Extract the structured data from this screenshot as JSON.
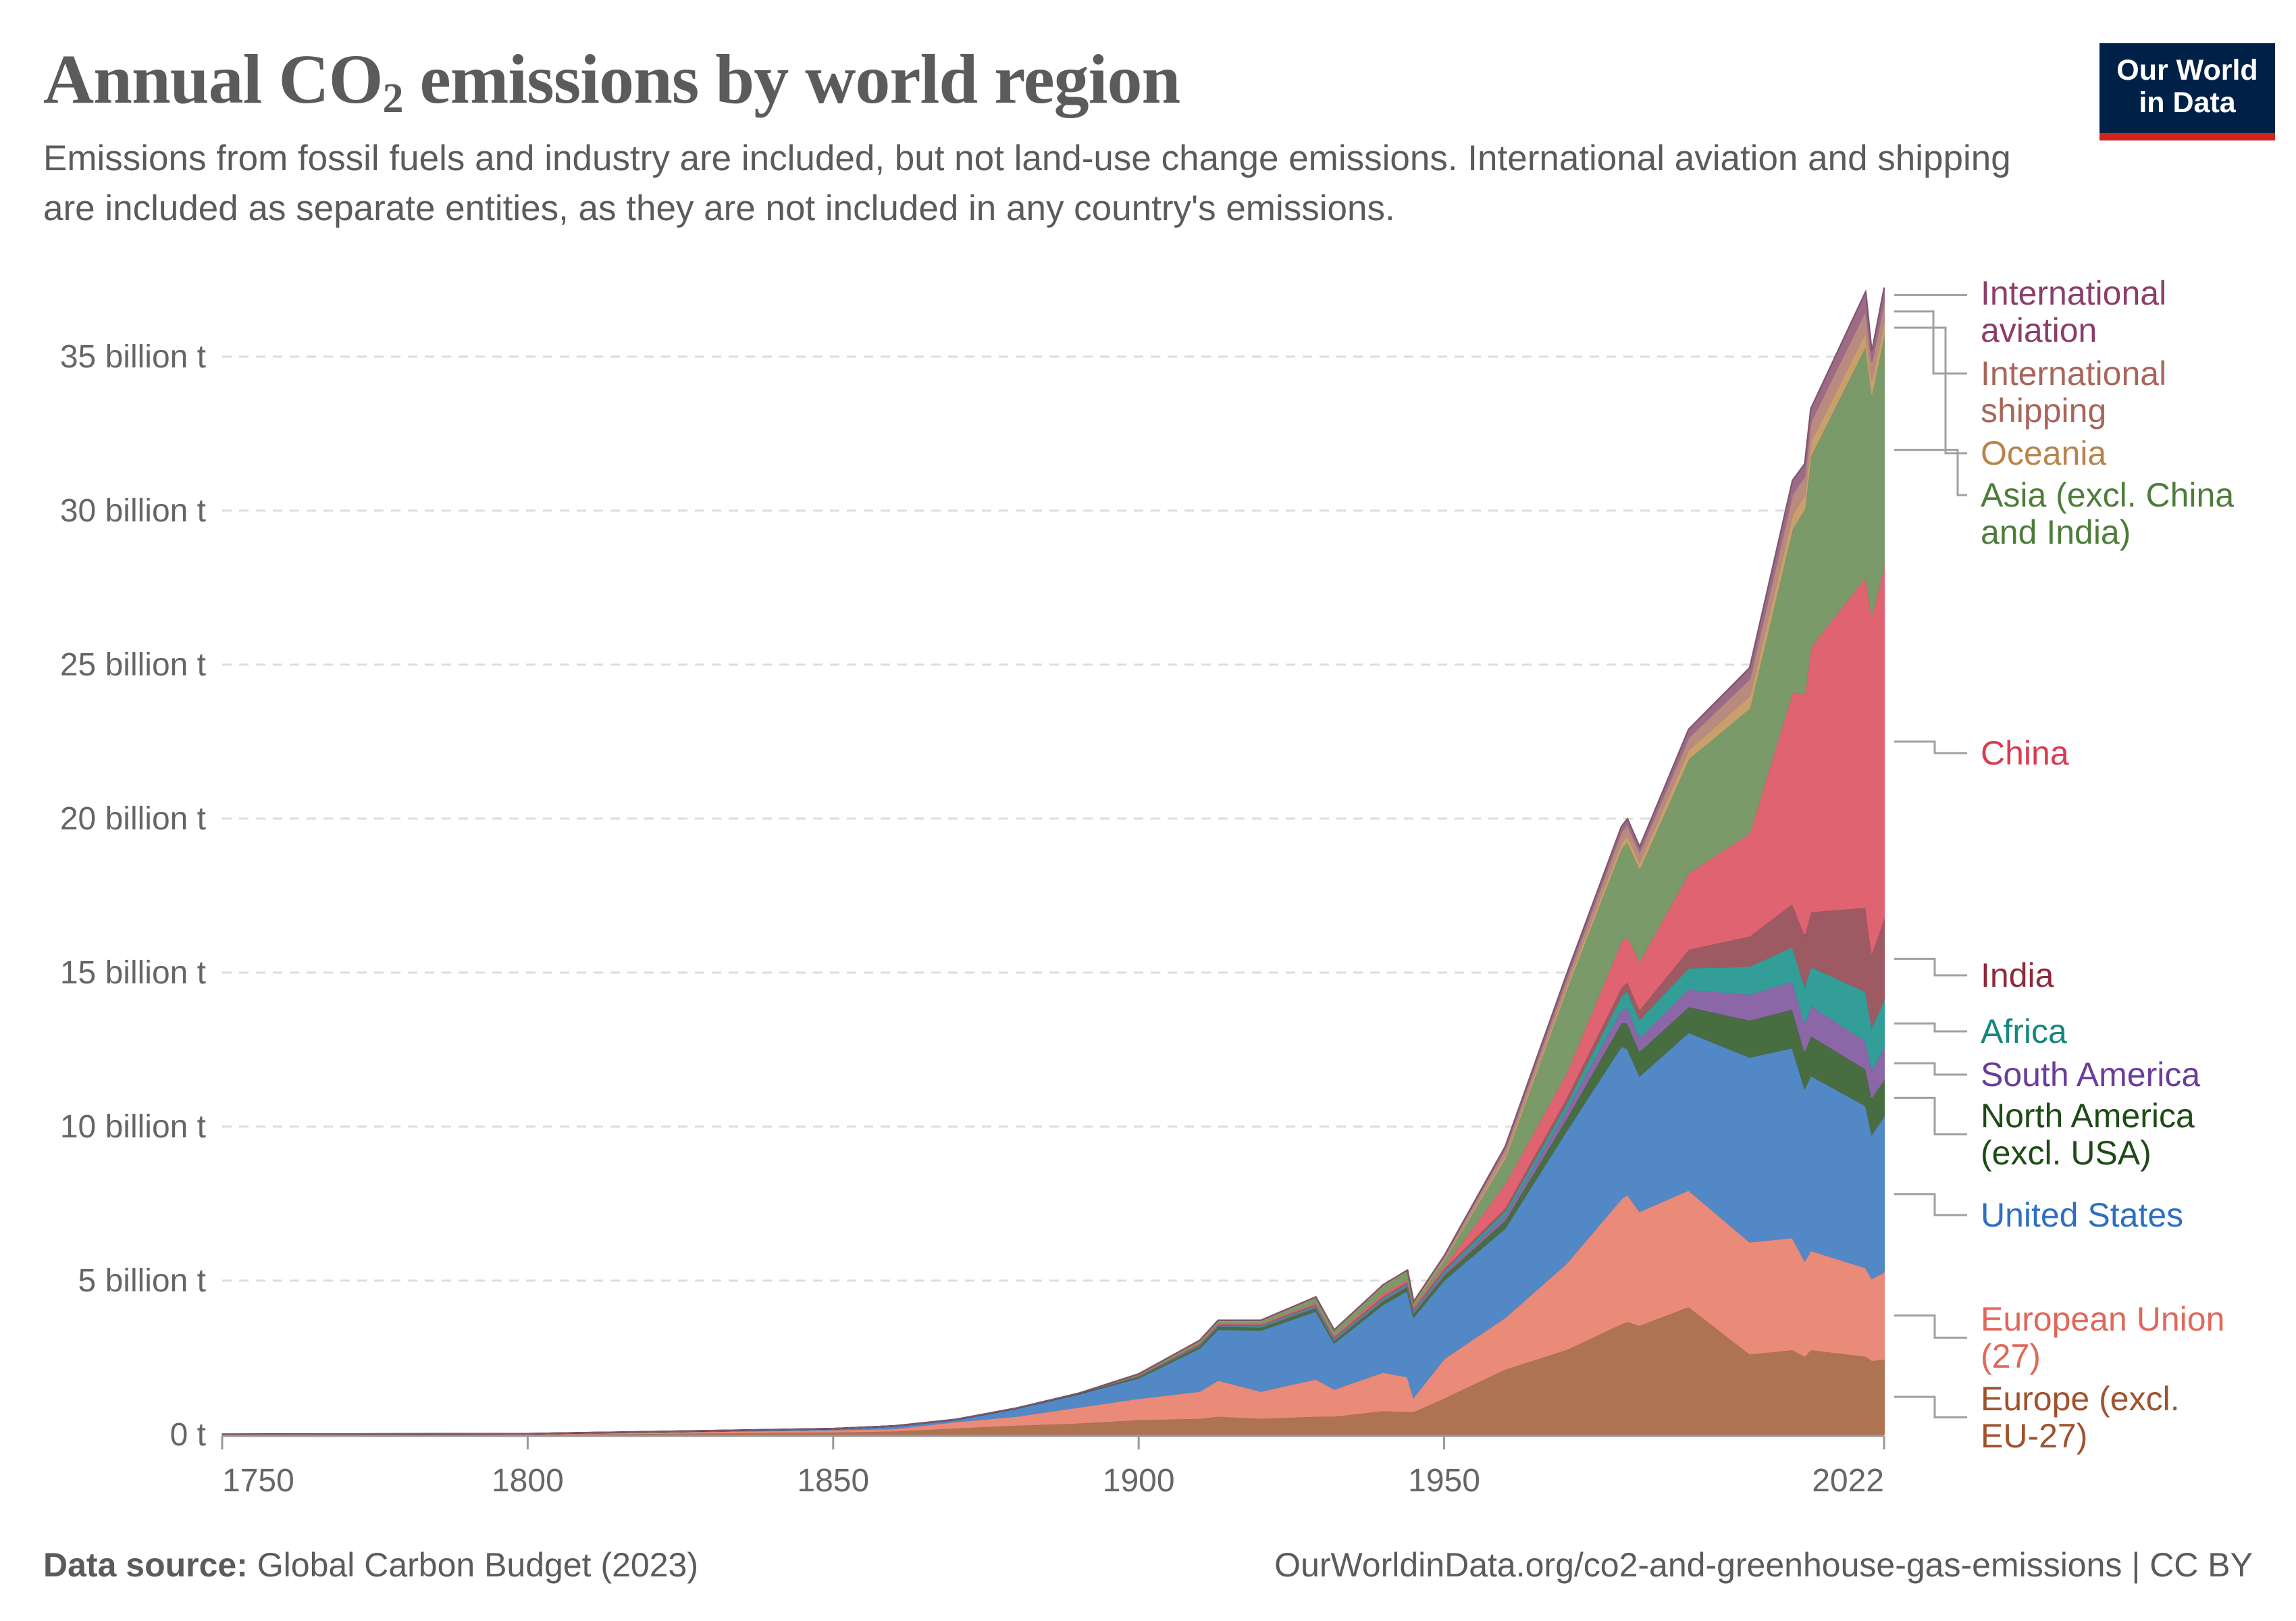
{
  "header": {
    "title_prefix": "Annual CO",
    "title_subscript": "2",
    "title_suffix": " emissions by world region",
    "subtitle": "Emissions from fossil fuels and industry are included, but not land-use change emissions. International aviation and shipping are included as separate entities, as they are not included in any country's emissions.",
    "logo_line1": "Our World",
    "logo_line2": "in Data"
  },
  "footer": {
    "source_label": "Data source:",
    "source_text": " Global Carbon Budget (2023)",
    "right_text": "OurWorldinData.org/co2-and-greenhouse-gas-emissions | CC BY"
  },
  "chart_data": {
    "type": "area",
    "stacked": true,
    "title": "Annual CO2 emissions by world region",
    "xlabel": "",
    "ylabel": "",
    "x": [
      1750,
      1800,
      1850,
      1860,
      1870,
      1880,
      1890,
      1900,
      1910,
      1913,
      1920,
      1929,
      1932,
      1940,
      1944,
      1945,
      1950,
      1960,
      1970,
      1979,
      1980,
      1982,
      1990,
      2000,
      2007,
      2009,
      2010,
      2019,
      2020,
      2022
    ],
    "xlim": [
      1750,
      2022
    ],
    "ylim": [
      0,
      37
    ],
    "y_unit": "billion t",
    "grid": "horizontal dashed",
    "x_ticks": [
      "1750",
      "1800",
      "1850",
      "1900",
      "1950",
      "2022"
    ],
    "y_ticks": [
      "0 t",
      "5 billion t",
      "10 billion t",
      "15 billion t",
      "20 billion t",
      "25 billion t",
      "30 billion t",
      "35 billion t"
    ],
    "legend_placement": "right (inline labels)",
    "series": [
      {
        "name": "Europe (excl. EU-27)",
        "label_lines": [
          "Europe (excl.",
          "EU-27)"
        ],
        "color": "#ae7452",
        "text_color": "#a0522d",
        "values": [
          0.004,
          0.012,
          0.09,
          0.12,
          0.22,
          0.31,
          0.38,
          0.49,
          0.53,
          0.6,
          0.53,
          0.6,
          0.6,
          0.78,
          0.75,
          0.75,
          1.19,
          2.13,
          2.76,
          3.6,
          3.67,
          3.55,
          4.16,
          2.62,
          2.76,
          2.55,
          2.76,
          2.55,
          2.41,
          2.45
        ]
      },
      {
        "name": "European Union (27)",
        "label_lines": [
          "European Union",
          "(27)"
        ],
        "color": "#ea8a78",
        "text_color": "#e0685a",
        "values": [
          0.005,
          0.016,
          0.07,
          0.08,
          0.2,
          0.29,
          0.51,
          0.69,
          0.88,
          1.17,
          0.88,
          1.21,
          0.88,
          1.25,
          1.13,
          0.47,
          1.28,
          1.68,
          2.8,
          4.06,
          4.13,
          3.7,
          3.78,
          3.64,
          3.64,
          3.1,
          3.22,
          2.87,
          2.66,
          2.83
        ]
      },
      {
        "name": "United States",
        "label_lines": [
          "United States"
        ],
        "color": "#5388c6",
        "text_color": "#2d6fc0",
        "values": [
          0,
          0.0003,
          0.03,
          0.08,
          0.07,
          0.25,
          0.42,
          0.66,
          1.4,
          1.65,
          1.98,
          2.2,
          1.5,
          2.2,
          2.8,
          2.6,
          2.55,
          2.9,
          4.3,
          4.95,
          4.73,
          4.4,
          5.12,
          6.0,
          6.16,
          5.6,
          5.68,
          5.26,
          4.69,
          5.06
        ]
      },
      {
        "name": "North America (excl. USA)",
        "label_lines": [
          "North America",
          "(excl. USA)"
        ],
        "color": "#486d41",
        "text_color": "#1e4a16",
        "values": [
          0,
          0,
          0,
          0,
          0,
          0.01,
          0.02,
          0.04,
          0.08,
          0.1,
          0.1,
          0.12,
          0.08,
          0.12,
          0.14,
          0.13,
          0.16,
          0.26,
          0.4,
          0.77,
          0.84,
          0.8,
          0.84,
          1.2,
          1.26,
          1.2,
          1.3,
          1.19,
          1.19,
          1.19
        ]
      },
      {
        "name": "South America",
        "label_lines": [
          "South America"
        ],
        "color": "#8b67a8",
        "text_color": "#6b3d9a",
        "values": [
          0,
          0,
          0,
          0,
          0,
          0,
          0,
          0.01,
          0.02,
          0.02,
          0.03,
          0.04,
          0.04,
          0.05,
          0.06,
          0.06,
          0.08,
          0.16,
          0.28,
          0.43,
          0.49,
          0.46,
          0.56,
          0.84,
          0.91,
          0.92,
          0.98,
          0.91,
          0.91,
          1.05
        ]
      },
      {
        "name": "Africa",
        "label_lines": [
          "Africa"
        ],
        "color": "#339e98",
        "text_color": "#16877f",
        "values": [
          0,
          0,
          0,
          0,
          0,
          0,
          0,
          0.01,
          0.02,
          0.02,
          0.03,
          0.04,
          0.04,
          0.05,
          0.05,
          0.05,
          0.07,
          0.14,
          0.21,
          0.44,
          0.56,
          0.58,
          0.7,
          0.91,
          1.12,
          1.2,
          1.26,
          1.61,
          1.4,
          1.54
        ]
      },
      {
        "name": "India",
        "label_lines": [
          "India"
        ],
        "color": "#9e5a62",
        "text_color": "#8c2a3a",
        "values": [
          0,
          0,
          0,
          0,
          0,
          0,
          0,
          0.02,
          0.03,
          0.03,
          0.03,
          0.04,
          0.04,
          0.05,
          0.05,
          0.05,
          0.07,
          0.11,
          0.19,
          0.28,
          0.29,
          0.32,
          0.6,
          0.98,
          1.4,
          1.68,
          1.78,
          2.73,
          2.38,
          2.66
        ]
      },
      {
        "name": "China",
        "label_lines": [
          "China"
        ],
        "color": "#e06371",
        "text_color": "#d73c50",
        "values": [
          0,
          0,
          0,
          0,
          0,
          0,
          0,
          0.01,
          0.03,
          0.03,
          0.03,
          0.05,
          0.05,
          0.1,
          0.08,
          0.06,
          0.08,
          0.78,
          0.8,
          1.5,
          1.49,
          1.57,
          2.48,
          3.35,
          6.87,
          7.8,
          8.6,
          10.74,
          10.96,
          11.44
        ]
      },
      {
        "name": "Asia (excl. China and India)",
        "label_lines": [
          "Asia (excl. China",
          "and India)"
        ],
        "color": "#7a9a6a",
        "text_color": "#4e7d3a",
        "values": [
          0,
          0,
          0,
          0,
          0,
          0,
          0,
          0.03,
          0.05,
          0.07,
          0.08,
          0.15,
          0.15,
          0.23,
          0.25,
          0.12,
          0.18,
          0.82,
          2.7,
          3.0,
          3.06,
          3.0,
          3.7,
          4.05,
          5.3,
          6.0,
          6.2,
          7.5,
          7.2,
          7.5
        ]
      },
      {
        "name": "Oceania",
        "label_lines": [
          "Oceania"
        ],
        "color": "#c9a06c",
        "text_color": "#b8844e",
        "values": [
          0,
          0,
          0,
          0,
          0,
          0,
          0,
          0.01,
          0.02,
          0.02,
          0.02,
          0.02,
          0.02,
          0.03,
          0.03,
          0.03,
          0.03,
          0.11,
          0.14,
          0.2,
          0.21,
          0.22,
          0.3,
          0.4,
          0.46,
          0.46,
          0.47,
          0.46,
          0.45,
          0.44
        ]
      },
      {
        "name": "International shipping",
        "label_lines": [
          "International",
          "shipping"
        ],
        "color": "#b88a80",
        "text_color": "#a8665a",
        "values": [
          0,
          0,
          0,
          0,
          0,
          0,
          0,
          0,
          0,
          0,
          0,
          0,
          0,
          0,
          0,
          0,
          0.1,
          0.2,
          0.21,
          0.34,
          0.36,
          0.33,
          0.4,
          0.55,
          0.67,
          0.61,
          0.64,
          0.7,
          0.6,
          0.62
        ]
      },
      {
        "name": "International aviation",
        "label_lines": [
          "International",
          "aviation"
        ],
        "color": "#9d6a87",
        "text_color": "#8a3e68",
        "values": [
          0,
          0,
          0,
          0,
          0,
          0,
          0,
          0,
          0,
          0,
          0,
          0,
          0,
          0,
          0,
          0,
          0.02,
          0.07,
          0.14,
          0.17,
          0.17,
          0.16,
          0.26,
          0.36,
          0.43,
          0.4,
          0.42,
          0.6,
          0.33,
          0.45
        ]
      }
    ]
  }
}
